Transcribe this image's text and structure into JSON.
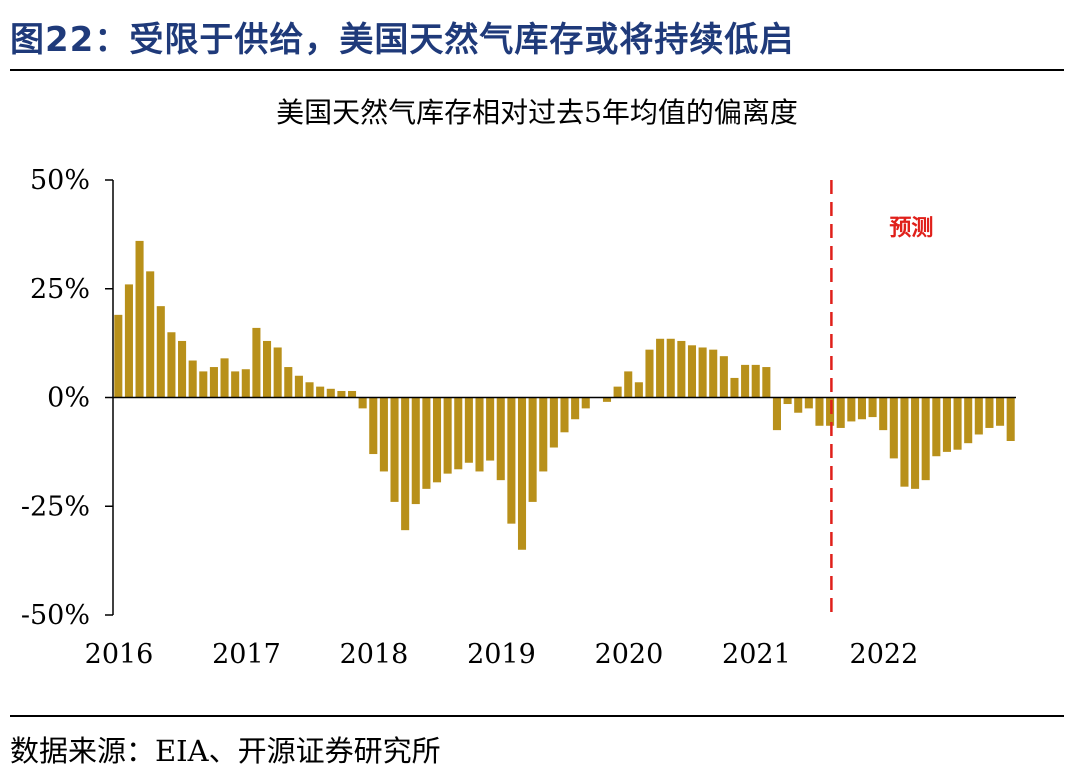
{
  "figure_title": "图22：受限于供给，美国天然气库存或将持续低启",
  "source_text": "数据来源：EIA、开源证券研究所",
  "colors": {
    "bar": "#b8901a",
    "forecast_line": "#e0201a",
    "title_blue": "#1f3a7a"
  },
  "chart_data": {
    "type": "bar",
    "title": "美国天然气库存相对过去5年均值的偏离度",
    "xlabel": "",
    "ylabel": "",
    "ylim": [
      -50,
      50
    ],
    "y_ticks": [
      "50%",
      "25%",
      "0%",
      "-25%",
      "-50%"
    ],
    "x_ticks": [
      "2016",
      "2017",
      "2018",
      "2019",
      "2020",
      "2021",
      "2022"
    ],
    "annotation": "预测",
    "forecast_start_index": 68,
    "grid": false,
    "series": [
      {
        "values": [
          19,
          26,
          36,
          29,
          21,
          15,
          13,
          8.5,
          6,
          7,
          9,
          6,
          6.5,
          16,
          13,
          11.5,
          7,
          5,
          3.5,
          2.5,
          2,
          1.5,
          1.5,
          -2.5,
          -13,
          -17,
          -24,
          -30.5,
          -24.5,
          -21,
          -19.5,
          -17.5,
          -16.5,
          -15,
          -17,
          -14.5,
          -19,
          -29,
          -35,
          -24,
          -17,
          -11.5,
          -8,
          -5,
          -2.5,
          0,
          -1,
          2.5,
          6,
          3.5,
          11,
          13.5,
          13.5,
          13,
          12,
          11.5,
          11,
          9.5,
          4.5,
          7.5,
          7.5,
          7,
          -7.5,
          -1.5,
          -3.5,
          -2.5,
          -6.5,
          -6.5,
          -7,
          -5.5,
          -5,
          -4.5,
          -7.5,
          -14,
          -20.5,
          -21,
          -19,
          -13.5,
          -12.5,
          -12,
          -10.5,
          -8.5,
          -7,
          -6.5,
          -10
        ]
      }
    ]
  }
}
